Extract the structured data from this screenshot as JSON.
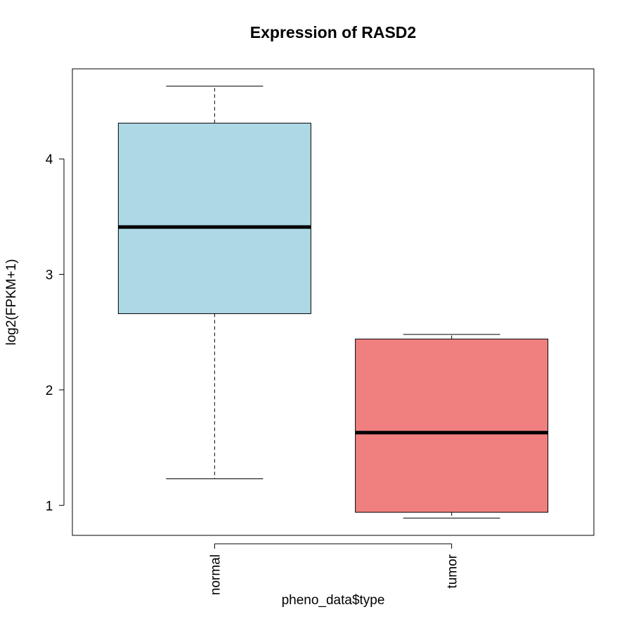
{
  "chart_data": {
    "type": "boxplot",
    "title": "Expression of RASD2",
    "xlabel": "pheno_data$type",
    "ylabel": "log2(FPKM+1)",
    "ylim": [
      0.74,
      4.78
    ],
    "yticks": [
      1,
      2,
      3,
      4
    ],
    "grid": false,
    "categories": [
      "normal",
      "tumor"
    ],
    "boxes": [
      {
        "category": "normal",
        "color": "#ADD8E6",
        "whisker_low": 1.23,
        "q1": 2.66,
        "median": 3.41,
        "q3": 4.31,
        "whisker_high": 4.63
      },
      {
        "category": "tumor",
        "color": "#F08080",
        "whisker_low": 0.89,
        "q1": 0.94,
        "median": 1.63,
        "q3": 2.44,
        "whisker_high": 2.48
      }
    ]
  }
}
